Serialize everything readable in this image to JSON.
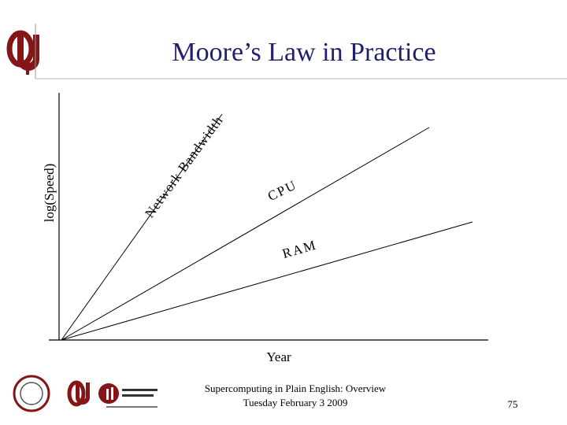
{
  "header": {
    "title": "Moore’s Law in Practice"
  },
  "diagram": {
    "y_axis_label": "log(Speed)",
    "x_axis_label": "Year",
    "lines": [
      {
        "label": "Network Bandwidth"
      },
      {
        "label": "CPU"
      },
      {
        "label": "RAM"
      }
    ]
  },
  "footer": {
    "line1": "Supercomputing in Plain English: Overview",
    "line2": "Tuesday February 3 2009",
    "page": "75"
  }
}
